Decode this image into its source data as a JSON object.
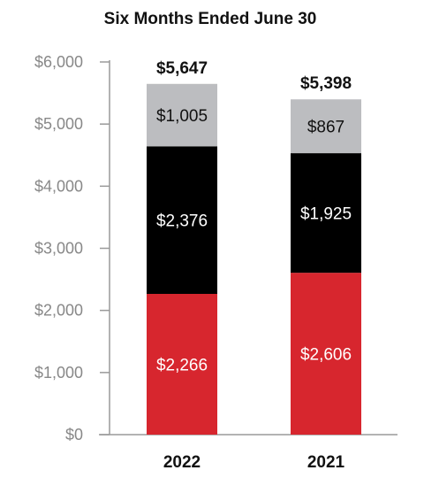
{
  "chart_data": {
    "type": "bar",
    "stacked": true,
    "title": "Six Months Ended June 30",
    "categories": [
      "2022",
      "2021"
    ],
    "series": [
      {
        "values": [
          2266,
          2606
        ],
        "labels": [
          "$2,266",
          "$2,606"
        ],
        "color": "#d7262e",
        "label_color": "#ffffff"
      },
      {
        "values": [
          2376,
          1925
        ],
        "labels": [
          "$2,376",
          "$1,925"
        ],
        "color": "#000000",
        "label_color": "#ffffff"
      },
      {
        "values": [
          1005,
          867
        ],
        "labels": [
          "$1,005",
          "$867"
        ],
        "color": "#bcbdc0",
        "label_color": "#111111"
      }
    ],
    "totals": [
      "$5,647",
      "$5,398"
    ],
    "total_values": [
      5647,
      5398
    ],
    "ylim": [
      0,
      6000
    ],
    "yticks": [
      0,
      1000,
      2000,
      3000,
      4000,
      5000,
      6000
    ],
    "ytick_labels": [
      "$0",
      "$1,000",
      "$2,000",
      "$3,000",
      "$4,000",
      "$5,000",
      "$6,000"
    ],
    "xlabel": "",
    "ylabel": "",
    "grid": false,
    "legend": "none"
  }
}
